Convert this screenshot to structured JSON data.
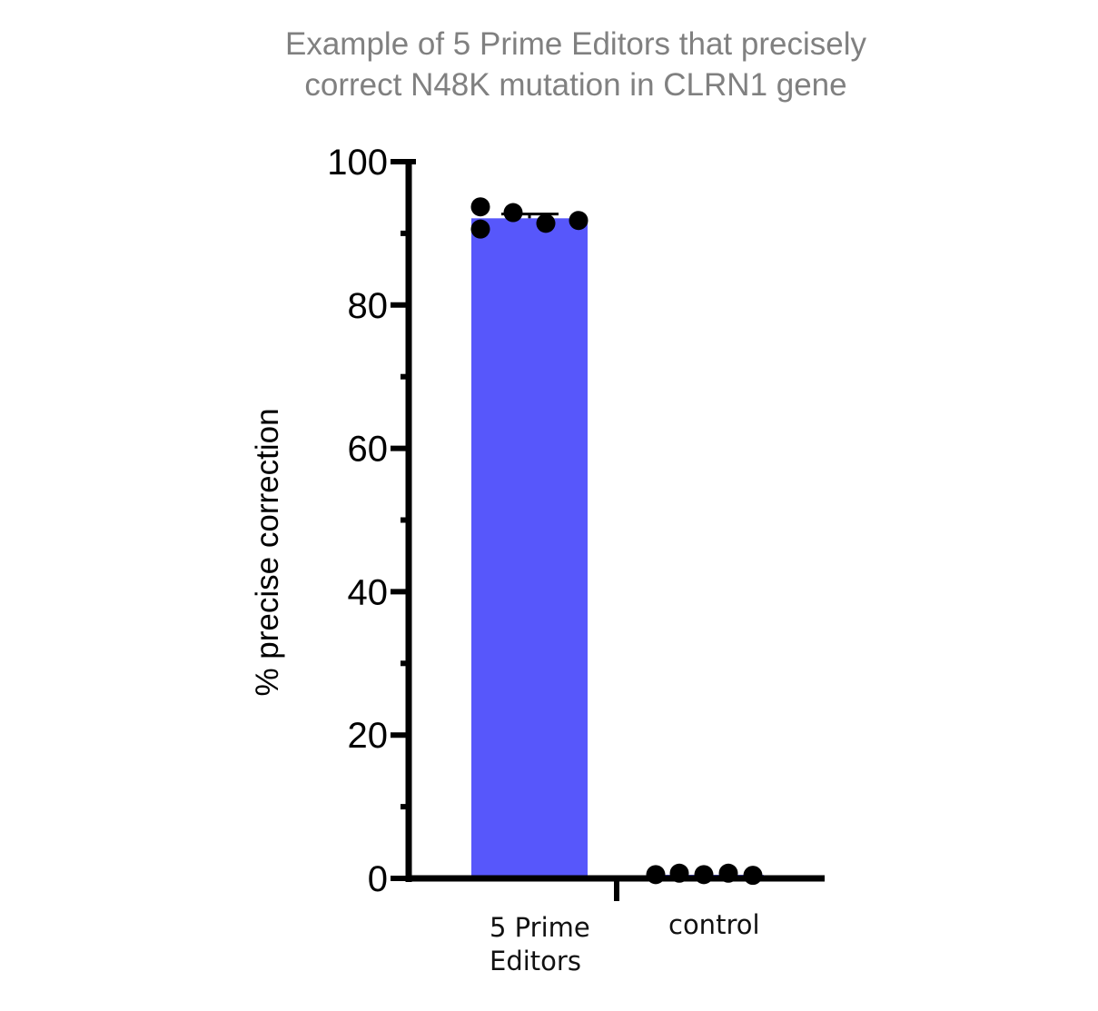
{
  "title": {
    "line1": "Example of 5 Prime Editors that precisely",
    "line2": "correct N48K mutation in CLRN1 gene"
  },
  "axes": {
    "ylabel": "% precise correction",
    "yticks": [
      "0",
      "20",
      "40",
      "60",
      "80",
      "100"
    ],
    "categories": [
      {
        "line1": "5 Prime",
        "line2": "Editors"
      },
      {
        "line1": "control",
        "line2": ""
      }
    ]
  },
  "colors": {
    "bar": "#5757fb",
    "points": "#000000",
    "axis": "#000000",
    "title": "#808080"
  },
  "chart_data": {
    "type": "bar",
    "title": "Example of 5 Prime Editors that precisely correct N48K mutation in CLRN1 gene",
    "xlabel": "",
    "ylabel": "% precise correction",
    "ylim": [
      0,
      100
    ],
    "yticks": [
      0,
      20,
      40,
      60,
      80,
      100
    ],
    "minor_ticks": [
      10,
      30,
      50,
      70,
      90
    ],
    "grid": false,
    "legend": null,
    "categories": [
      "5 Prime Editors",
      "control"
    ],
    "values": [
      92.1,
      0.5
    ],
    "error_bars": [
      {
        "category": "5 Prime Editors",
        "upper": 92.7
      }
    ],
    "points": [
      {
        "category": "5 Prime Editors",
        "values": [
          93.7,
          90.6,
          92.9,
          91.4,
          91.8
        ]
      },
      {
        "category": "control",
        "values": [
          0.4,
          0.6,
          0.4,
          0.6,
          0.3
        ]
      }
    ]
  }
}
